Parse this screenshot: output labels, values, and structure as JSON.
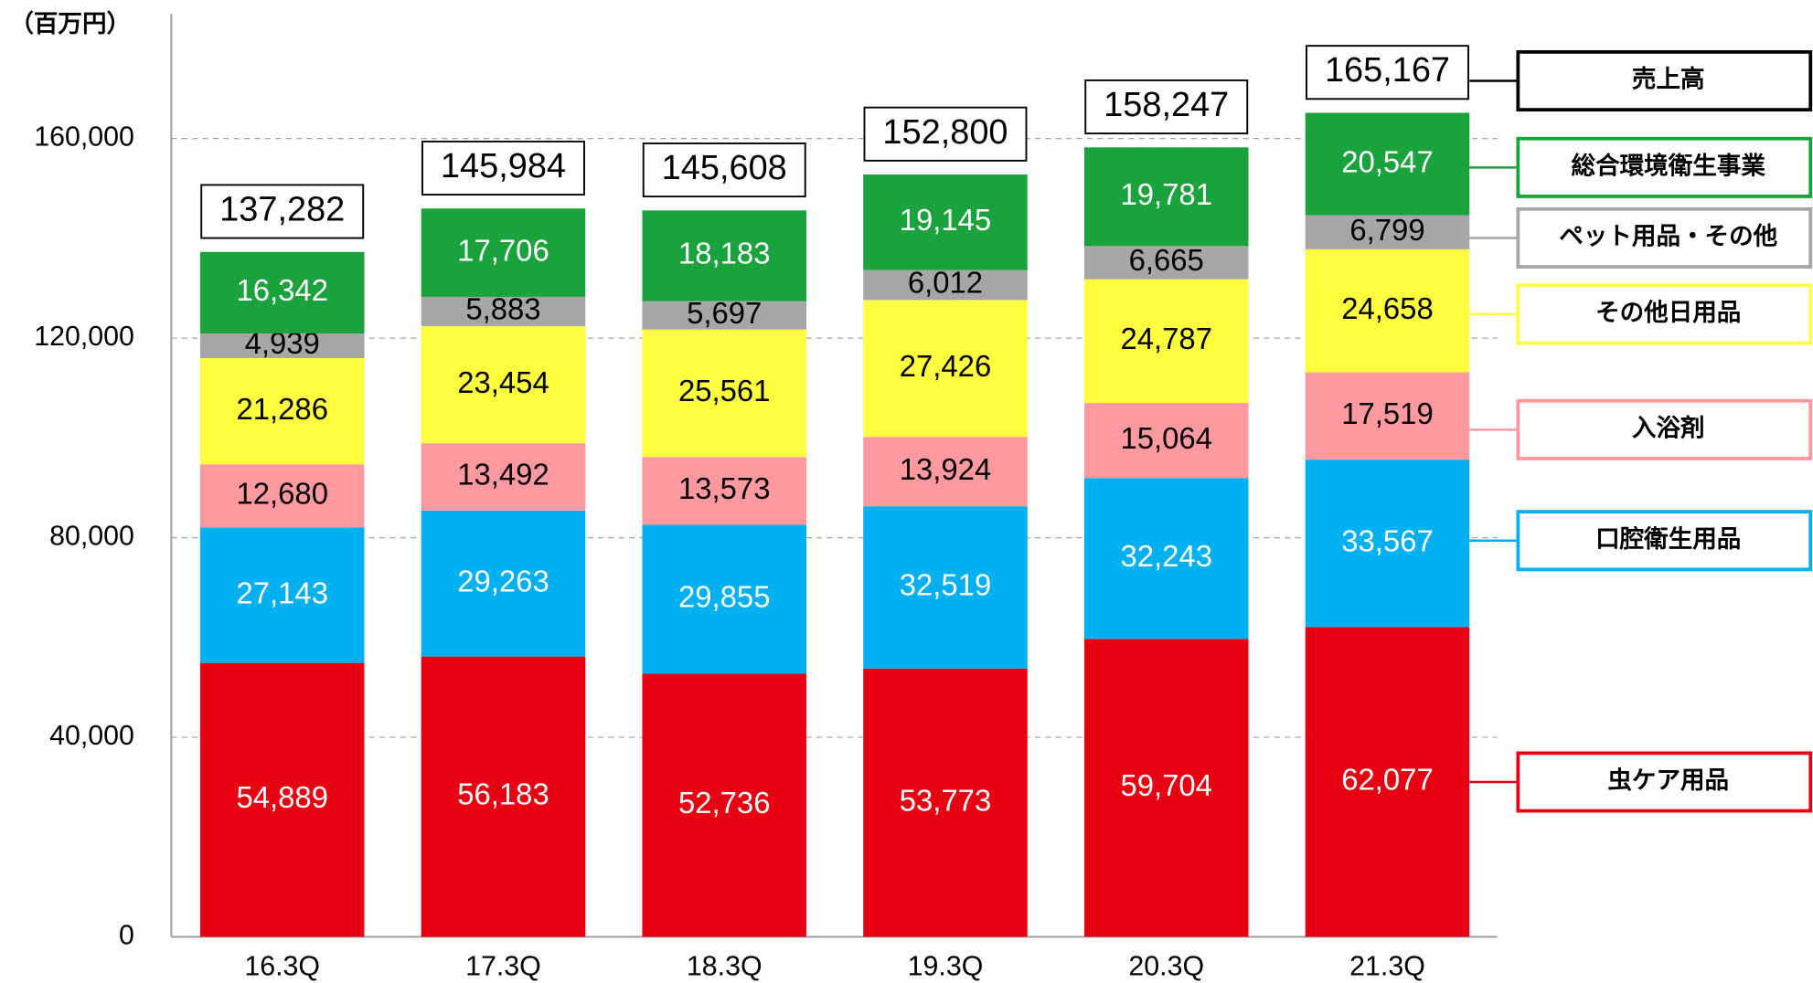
{
  "chart_data": {
    "type": "stacked_bar",
    "y_axis_label": "（百万円）",
    "categories": [
      "16.3Q",
      "17.3Q",
      "18.3Q",
      "19.3Q",
      "20.3Q",
      "21.3Q"
    ],
    "series": [
      {
        "name": "虫ケア用品",
        "color": "#e60012",
        "values": [
          54889,
          56183,
          52736,
          53773,
          59704,
          62077
        ],
        "value_labels": [
          "54,889",
          "56,183",
          "52,736",
          "53,773",
          "59,704",
          "62,077"
        ]
      },
      {
        "name": "口腔衛生用品",
        "color": "#00b0f0",
        "values": [
          27143,
          29263,
          29855,
          32519,
          32243,
          33567
        ],
        "value_labels": [
          "27,143",
          "29,263",
          "29,855",
          "32,519",
          "32,243",
          "33,567"
        ]
      },
      {
        "name": "入浴剤",
        "color": "#ff99a0",
        "values": [
          12680,
          13492,
          13573,
          13924,
          15064,
          17519
        ],
        "value_labels": [
          "12,680",
          "13,492",
          "13,573",
          "13,924",
          "15,064",
          "17,519"
        ]
      },
      {
        "name": "その他日用品",
        "color": "#ffff40",
        "values": [
          21286,
          23454,
          25561,
          27426,
          24787,
          24658
        ],
        "value_labels": [
          "21,286",
          "23,454",
          "25,561",
          "27,426",
          "24,787",
          "24,658"
        ]
      },
      {
        "name": "ペット用品・その他",
        "color": "#a6a6a6",
        "values": [
          4939,
          5883,
          5697,
          6012,
          6665,
          6799
        ],
        "value_labels": [
          "4,939",
          "5,883",
          "5,697",
          "6,012",
          "6,665",
          "6,799"
        ]
      },
      {
        "name": "総合環境衛生事業",
        "color": "#1aa33c",
        "values": [
          16342,
          17706,
          18183,
          19145,
          19781,
          20547
        ],
        "value_labels": [
          "16,342",
          "17,706",
          "18,183",
          "19,145",
          "19,781",
          "20,547"
        ]
      }
    ],
    "totals": {
      "name": "売上高",
      "values": [
        137282,
        145984,
        145608,
        152800,
        158247,
        165167
      ],
      "value_labels": [
        "137,282",
        "145,984",
        "145,608",
        "152,800",
        "158,247",
        "165,167"
      ]
    },
    "ylim": [
      0,
      185000
    ],
    "yticks": [
      0,
      {
        "value": 40000,
        "label": "40,000"
      },
      {
        "value": 80000,
        "label": "80,000"
      },
      {
        "value": 120000,
        "label": "120,000"
      },
      {
        "value": 160000,
        "label": "160,000"
      }
    ],
    "grid": true,
    "legend": "right"
  }
}
